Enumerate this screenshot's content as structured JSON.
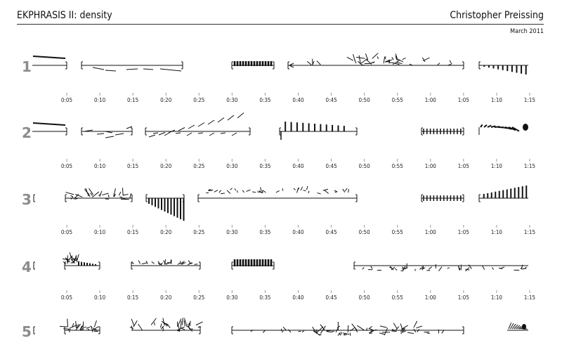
{
  "header": {
    "title": "EKPHRASIS II: density",
    "author": "Christopher Preissing",
    "date": "March 2011"
  },
  "time_labels": [
    "0:05",
    "0:10",
    "0:15",
    "0:20",
    "0:25",
    "0:30",
    "0:35",
    "0:40",
    "0:45",
    "0:50",
    "0:55",
    "1:00",
    "1:05",
    "1:10",
    "1:15"
  ],
  "systems": [
    {
      "number": "1"
    },
    {
      "number": "2"
    },
    {
      "number": "3"
    },
    {
      "number": "4"
    },
    {
      "number": "5"
    }
  ],
  "style": {
    "ink": "#111111",
    "number_color": "#8c8c8c",
    "tick_color": "#999999"
  }
}
